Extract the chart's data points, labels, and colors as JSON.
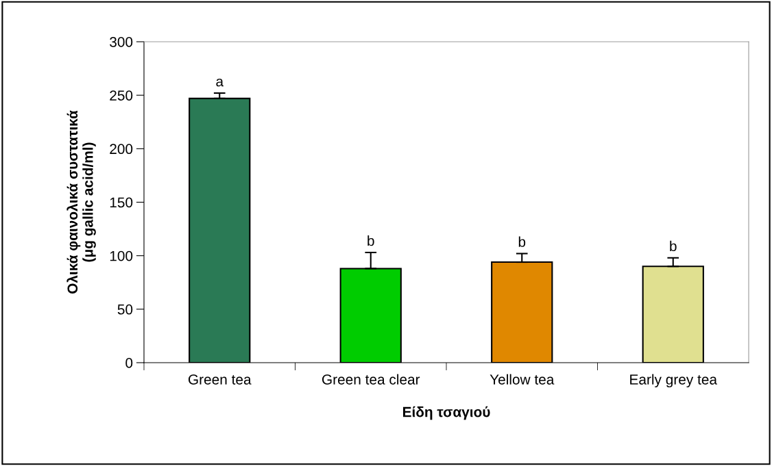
{
  "chart_data": {
    "type": "bar",
    "xlabel": "Είδη τσαγιού",
    "ylabel": "Ολικά φαινολικά συστατικά\n(μg gallic acid/ml)",
    "categories": [
      "Green tea",
      "Green tea clear",
      "Yellow tea",
      "Early grey tea"
    ],
    "values": [
      247,
      88,
      94,
      90
    ],
    "errors": [
      5,
      15,
      8,
      8
    ],
    "colors": [
      "#2a7a55",
      "#00cc00",
      "#e08800",
      "#e0e090"
    ],
    "ylim": [
      0,
      300
    ],
    "yticks": [
      0,
      50,
      100,
      150,
      200,
      250,
      300
    ],
    "grid": false,
    "annotations": [
      {
        "text": "a",
        "x": "Green tea",
        "y": 252
      },
      {
        "text": "b",
        "x": "Green tea clear",
        "y": 103
      },
      {
        "text": "b",
        "x": "Yellow tea",
        "y": 102
      },
      {
        "text": "b",
        "x": "Early grey tea",
        "y": 98
      }
    ]
  }
}
